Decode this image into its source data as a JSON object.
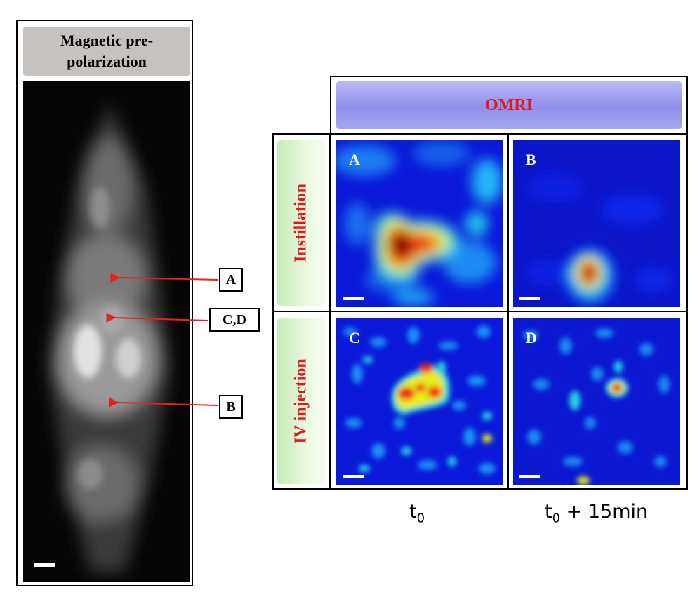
{
  "left_panel": {
    "title": "Magnetic pre-polarization"
  },
  "markers": [
    {
      "label": "A"
    },
    {
      "label": "C,D"
    },
    {
      "label": "B"
    }
  ],
  "header": {
    "title": "OMRI"
  },
  "rows": [
    {
      "label": "Instillation"
    },
    {
      "label": "IV injection"
    }
  ],
  "panels": [
    {
      "label": "A"
    },
    {
      "label": "B"
    },
    {
      "label": "C"
    },
    {
      "label": "D"
    }
  ],
  "columns": [
    {
      "main": "t",
      "sub": "0",
      "suffix": ""
    },
    {
      "main": "t",
      "sub": "0",
      "suffix": " + 15min"
    }
  ],
  "colors": {
    "arrow": "#e8201f",
    "row_label_text": "#e0191d",
    "header_text": "#e0191d",
    "colormap": [
      "#00008f",
      "#0000ff",
      "#00ffff",
      "#ffff00",
      "#ff0000",
      "#800000"
    ]
  }
}
